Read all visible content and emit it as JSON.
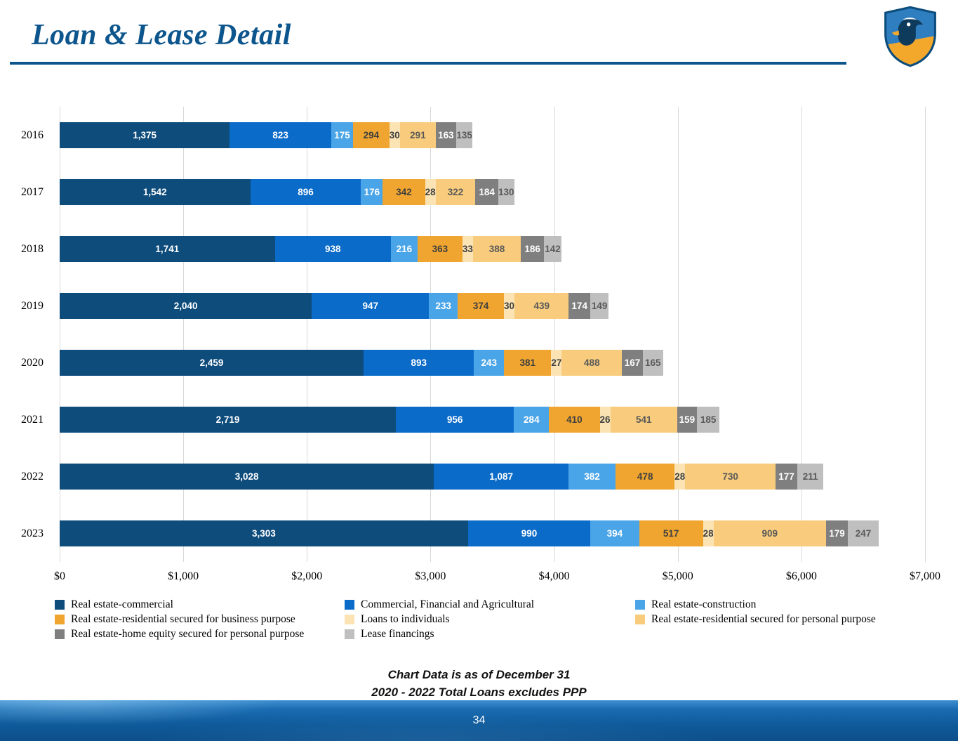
{
  "title": "Loan & Lease Detail",
  "chart_data": {
    "type": "bar",
    "orientation": "horizontal",
    "stacked": true,
    "grid": true,
    "legend_position": "bottom",
    "xlim": [
      0,
      7000
    ],
    "x_ticks": [
      "$0",
      "$1,000",
      "$2,000",
      "$3,000",
      "$4,000",
      "$5,000",
      "$6,000",
      "$7,000"
    ],
    "categories": [
      "2016",
      "2017",
      "2018",
      "2019",
      "2020",
      "2021",
      "2022",
      "2023"
    ],
    "series": [
      {
        "name": "Real estate-commercial",
        "color": "#0e4c7c",
        "label_color": "#ffffff",
        "values": [
          1375,
          1542,
          1741,
          2040,
          2459,
          2719,
          3028,
          3303
        ]
      },
      {
        "name": "Commercial, Financial and Agricultural",
        "color": "#0b6bc8",
        "label_color": "#ffffff",
        "values": [
          823,
          896,
          938,
          947,
          893,
          956,
          1087,
          990
        ]
      },
      {
        "name": "Real estate-construction",
        "color": "#4aa5e8",
        "label_color": "#ffffff",
        "values": [
          175,
          176,
          216,
          233,
          243,
          284,
          382,
          394
        ]
      },
      {
        "name": "Real estate-residential secured for business purpose",
        "color": "#efa52f",
        "label_color": "#3f3f3f",
        "values": [
          294,
          342,
          363,
          374,
          381,
          410,
          478,
          517
        ]
      },
      {
        "name": "Loans to individuals",
        "color": "#fbe3b4",
        "label_color": "#3f3f3f",
        "values": [
          30,
          28,
          33,
          30,
          27,
          26,
          28,
          28
        ]
      },
      {
        "name": "Real estate-residential secured for personal purpose",
        "color": "#f8cc7c",
        "label_color": "#595959",
        "values": [
          291,
          322,
          388,
          439,
          488,
          541,
          730,
          909
        ]
      },
      {
        "name": "Real estate-home equity secured for personal purpose",
        "color": "#7f7f7f",
        "label_color": "#ffffff",
        "values": [
          163,
          184,
          186,
          174,
          167,
          159,
          177,
          179
        ]
      },
      {
        "name": "Lease financings",
        "color": "#bfbfbf",
        "label_color": "#595959",
        "values": [
          135,
          130,
          142,
          149,
          165,
          185,
          211,
          247
        ]
      }
    ]
  },
  "notes": [
    "Chart Data is as of December 31",
    "2020 - 2022 Total Loans excludes PPP"
  ],
  "footer": {
    "page_number": "34"
  }
}
